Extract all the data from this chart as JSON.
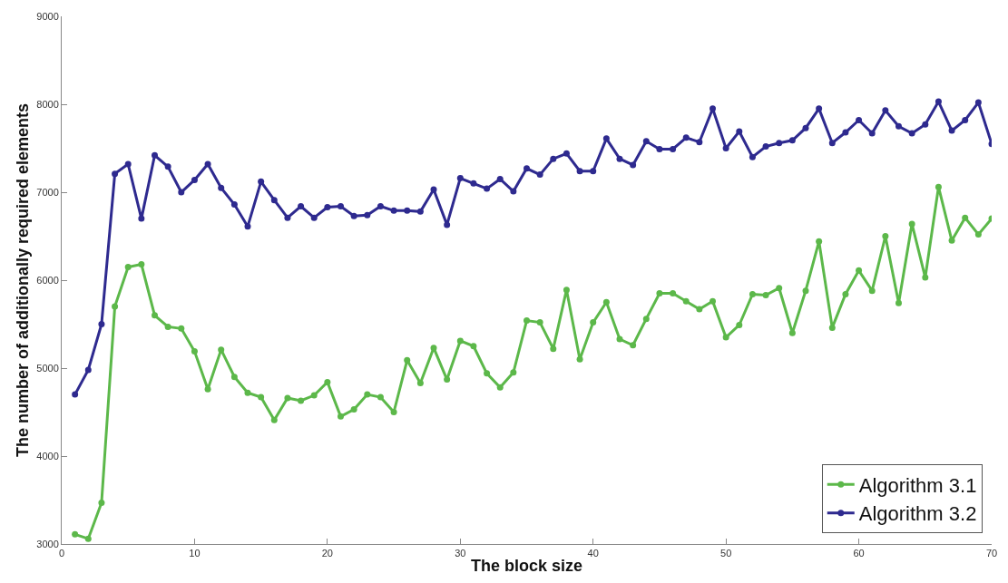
{
  "chart_data": {
    "type": "line",
    "xlabel": "The block size",
    "ylabel": "The number of additionally required elements",
    "x": [
      1,
      2,
      3,
      4,
      5,
      6,
      7,
      8,
      9,
      10,
      11,
      12,
      13,
      14,
      15,
      16,
      17,
      18,
      19,
      20,
      21,
      22,
      23,
      24,
      25,
      26,
      27,
      28,
      29,
      30,
      31,
      32,
      33,
      34,
      35,
      36,
      37,
      38,
      39,
      40,
      41,
      42,
      43,
      44,
      45,
      46,
      47,
      48,
      49,
      50,
      51,
      52,
      53,
      54,
      55,
      56,
      57,
      58,
      59,
      60,
      61,
      62,
      63,
      64,
      65,
      66,
      67,
      68,
      69,
      70
    ],
    "series": [
      {
        "name": "Algorithm 3.1",
        "color": "#5cb84a",
        "values": [
          3110,
          3060,
          3470,
          5700,
          6150,
          6180,
          5600,
          5470,
          5450,
          5190,
          4760,
          5210,
          4900,
          4720,
          4670,
          4410,
          4660,
          4630,
          4690,
          4840,
          4450,
          4530,
          4700,
          4670,
          4500,
          5090,
          4830,
          5230,
          4870,
          5310,
          5250,
          4940,
          4780,
          4950,
          5540,
          5520,
          5220,
          5890,
          5100,
          5520,
          5750,
          5330,
          5260,
          5560,
          5850,
          5850,
          5760,
          5670,
          5760,
          5350,
          5490,
          5840,
          5830,
          5910,
          5400,
          5880,
          6440,
          5460,
          5840,
          6110,
          5880,
          6500,
          5740,
          6640,
          6030,
          7060,
          6450,
          6710,
          6520,
          6700
        ]
      },
      {
        "name": "Algorithm 3.2",
        "color": "#2e2a8f",
        "values": [
          4700,
          4980,
          5500,
          7210,
          7320,
          6700,
          7420,
          7290,
          7000,
          7140,
          7320,
          7050,
          6860,
          6610,
          7120,
          6910,
          6710,
          6840,
          6710,
          6830,
          6840,
          6730,
          6740,
          6840,
          6790,
          6790,
          6780,
          7030,
          6630,
          7160,
          7100,
          7040,
          7150,
          7010,
          7270,
          7200,
          7380,
          7440,
          7240,
          7240,
          7610,
          7380,
          7310,
          7580,
          7490,
          7490,
          7620,
          7570,
          7950,
          7500,
          7690,
          7400,
          7520,
          7560,
          7590,
          7730,
          7950,
          7560,
          7680,
          7820,
          7670,
          7930,
          7750,
          7670,
          7770,
          8030,
          7700,
          7820,
          8020,
          7550
        ]
      }
    ],
    "xlim": [
      0,
      70
    ],
    "xticks": [
      0,
      10,
      20,
      30,
      40,
      50,
      60,
      70
    ],
    "ylim": [
      3000,
      9000
    ],
    "yticks": [
      3000,
      4000,
      5000,
      6000,
      7000,
      8000,
      9000
    ],
    "legend": "bottom right",
    "marker": "circle",
    "line_style": "solid"
  }
}
